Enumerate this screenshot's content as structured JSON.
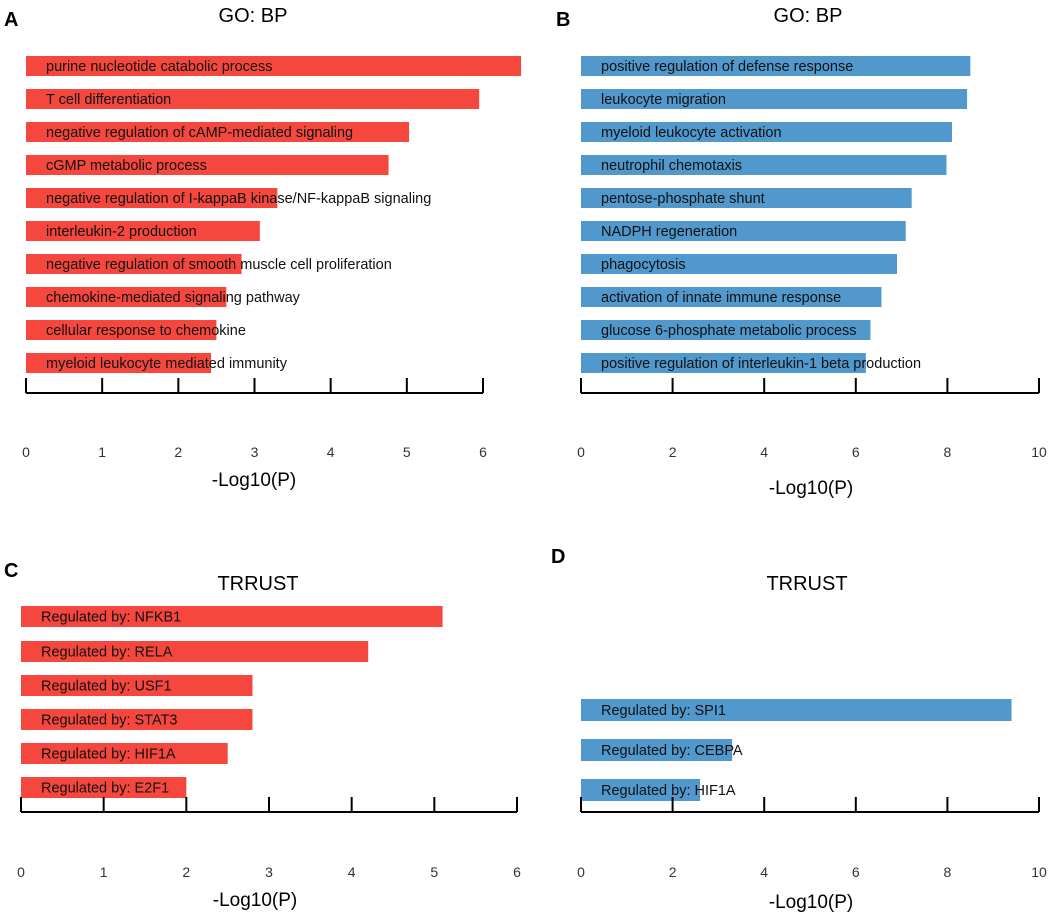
{
  "chart_data": [
    {
      "panel": "A",
      "type": "bar",
      "orientation": "horizontal",
      "title": "GO: BP",
      "xlabel": "-Log10(P)",
      "color": "#f5473e",
      "xlim": [
        0,
        6
      ],
      "xticks": [
        0,
        1,
        2,
        3,
        4,
        5,
        6
      ],
      "categories": [
        "purine nucleotide catabolic process",
        "T cell differentiation",
        "negative regulation of cAMP-mediated signaling",
        "cGMP metabolic process",
        "negative regulation of I-kappaB kinase/NF-kappaB signaling",
        "interleukin-2 production",
        "negative regulation of smooth muscle cell proliferation",
        "chemokine-mediated signaling pathway",
        "cellular response to chemokine",
        "myeloid leukocyte mediated immunity"
      ],
      "values": [
        6.5,
        5.95,
        5.03,
        4.76,
        3.3,
        3.07,
        2.83,
        2.63,
        2.5,
        2.43
      ]
    },
    {
      "panel": "B",
      "type": "bar",
      "orientation": "horizontal",
      "title": "GO: BP",
      "xlabel": "-Log10(P)",
      "color": "#5198cc",
      "xlim": [
        0,
        10
      ],
      "xticks": [
        0,
        2,
        4,
        6,
        8,
        10
      ],
      "categories": [
        "positive regulation of defense response",
        "leukocyte migration",
        "myeloid leukocyte activation",
        "neutrophil chemotaxis",
        "pentose-phosphate shunt",
        "NADPH regeneration",
        "phagocytosis",
        "activation of innate immune response",
        "glucose 6-phosphate metabolic process",
        "positive regulation of interleukin-1 beta production"
      ],
      "values": [
        8.5,
        8.43,
        8.1,
        7.98,
        7.22,
        7.09,
        6.9,
        6.56,
        6.32,
        6.22
      ]
    },
    {
      "panel": "C",
      "type": "bar",
      "orientation": "horizontal",
      "title": "TRRUST",
      "xlabel": "-Log10(P)",
      "color": "#f5473e",
      "xlim": [
        0,
        6
      ],
      "xticks": [
        0,
        1,
        2,
        3,
        4,
        5,
        6
      ],
      "categories": [
        "Regulated by: NFKB1",
        "Regulated by: RELA",
        "Regulated by: USF1",
        "Regulated by: STAT3",
        "Regulated by: HIF1A",
        "Regulated by: E2F1"
      ],
      "values": [
        5.1,
        4.2,
        2.8,
        2.8,
        2.5,
        2.0
      ]
    },
    {
      "panel": "D",
      "type": "bar",
      "orientation": "horizontal",
      "title": "TRRUST",
      "xlabel": "-Log10(P)",
      "color": "#5198cc",
      "xlim": [
        0,
        10
      ],
      "xticks": [
        0,
        2,
        4,
        6,
        8,
        10
      ],
      "categories": [
        "Regulated by: SPI1",
        "Regulated by: CEBPA",
        "Regulated by: HIF1A"
      ],
      "values": [
        9.4,
        3.3,
        2.6
      ]
    }
  ]
}
